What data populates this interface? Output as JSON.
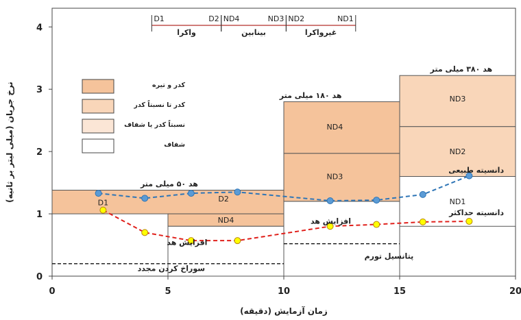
{
  "chart_data": {
    "type": "line",
    "xlabel": "زمان آزمایش (دقیقه)",
    "ylabel": "نرخ جریان (میلی لیتر بر ثانیه)",
    "xlim": [
      0,
      20
    ],
    "ylim": [
      0,
      4.3
    ],
    "x_ticks": [
      "0",
      "5",
      "10",
      "15",
      "20"
    ],
    "y_ticks": [
      "0",
      "1",
      "2",
      "3",
      "4"
    ],
    "grid": false,
    "colors": {
      "dark": "#f5c39b",
      "medium": "#f9d6b9",
      "light": "#fbe6d6",
      "clear": "#ffffff",
      "blue": "#2e75b6",
      "red": "#e0201b",
      "yellow": "#ffff00",
      "border": "#555555",
      "bracket": "#c0504d"
    },
    "legend": [
      {
        "label": "کدر و تیره",
        "fill": "dark"
      },
      {
        "label": "کدر تا نسبتاً کدر",
        "fill": "medium"
      },
      {
        "label": "نسبتاً کدر یا شفاف",
        "fill": "light"
      },
      {
        "label": "شفاف",
        "fill": "clear"
      }
    ],
    "regions": [
      {
        "x0": 0,
        "x1": 10,
        "y0": 1.0,
        "y1": 1.38,
        "fill": "dark",
        "label": ""
      },
      {
        "x0": 5,
        "x1": 10,
        "y0": 0.8,
        "y1": 1.0,
        "fill": "dark",
        "label": "ND4",
        "label_x": 7.5,
        "label_y": 0.9
      },
      {
        "x0": 10,
        "x1": 15,
        "y0": 1.97,
        "y1": 2.8,
        "fill": "dark",
        "label": "ND4",
        "label_x": 12.2,
        "label_y": 2.4
      },
      {
        "x0": 10,
        "x1": 15,
        "y0": 1.2,
        "y1": 1.97,
        "fill": "dark",
        "label": "ND3",
        "label_x": 12.2,
        "label_y": 1.6
      },
      {
        "x0": 15,
        "x1": 20,
        "y0": 2.4,
        "y1": 3.22,
        "fill": "medium",
        "label": "ND3",
        "label_x": 17.5,
        "label_y": 2.85
      },
      {
        "x0": 15,
        "x1": 20,
        "y0": 1.6,
        "y1": 2.4,
        "fill": "medium",
        "label": "ND2",
        "label_x": 17.5,
        "label_y": 2.0
      },
      {
        "x0": 15,
        "x1": 20,
        "y0": 0.8,
        "y1": 1.6,
        "fill": "clear",
        "label": "ND1",
        "label_x": 17.5,
        "label_y": 1.2
      },
      {
        "x0": 10,
        "x1": 15,
        "y0": 0.0,
        "y1": 1.2,
        "fill": "clear",
        "label": ""
      },
      {
        "x0": 5,
        "x1": 10,
        "y0": 0.0,
        "y1": 0.8,
        "fill": "clear",
        "label": ""
      }
    ],
    "region_labels": [
      {
        "text": "D1",
        "x": 2.2,
        "y": 1.18
      },
      {
        "text": "D2",
        "x": 7.4,
        "y": 1.24
      }
    ],
    "dashed_levels": [
      {
        "x0": 0,
        "x1": 10,
        "y": 0.2
      },
      {
        "x0": 10,
        "x1": 15,
        "y": 0.52
      }
    ],
    "series": [
      {
        "name": "دانسیته طبیعی",
        "color": "blue",
        "x": [
          2,
          4,
          6,
          8,
          12,
          14,
          16,
          18
        ],
        "y": [
          1.33,
          1.25,
          1.33,
          1.35,
          1.21,
          1.22,
          1.31,
          1.61
        ]
      },
      {
        "name": "دانسیته حداکثر",
        "color": "red",
        "x": [
          2.2,
          4,
          6,
          8,
          12,
          14,
          16,
          18
        ],
        "y": [
          1.06,
          0.7,
          0.57,
          0.57,
          0.8,
          0.83,
          0.87,
          0.88
        ]
      }
    ],
    "annotations": [
      {
        "text": "هد ۵۰ میلی متر",
        "x": 6.3,
        "y": 1.44
      },
      {
        "text": "هد ۱۸۰ میلی متر",
        "x": 12.5,
        "y": 2.86
      },
      {
        "text": "هد ۳۸۰ میلی متر",
        "x": 19.0,
        "y": 3.28
      },
      {
        "text": "دانسیته طبیعی",
        "x": 19.5,
        "y": 1.66
      },
      {
        "text": "دانسیته حداکثر",
        "x": 19.5,
        "y": 0.98
      },
      {
        "text": "افزایش هد",
        "x": 6.7,
        "y": 0.5
      },
      {
        "text": "افزایش هد",
        "x": 12.9,
        "y": 0.84
      },
      {
        "text": "سوراخ کردن مجدد",
        "x": 6.6,
        "y": 0.08
      },
      {
        "text": "پتانسیل تورم",
        "x": 15.6,
        "y": 0.28
      }
    ],
    "brackets": [
      {
        "x0": 4.3,
        "x1": 7.3,
        "left": "D1",
        "right": "D2",
        "caption": "واکرا"
      },
      {
        "x0": 7.3,
        "x1": 10.1,
        "left": "ND4",
        "right": "ND3",
        "caption": "بینابین"
      },
      {
        "x0": 10.1,
        "x1": 13.1,
        "left": "ND2",
        "right": "ND1",
        "caption": "غیرواکرا"
      }
    ]
  }
}
